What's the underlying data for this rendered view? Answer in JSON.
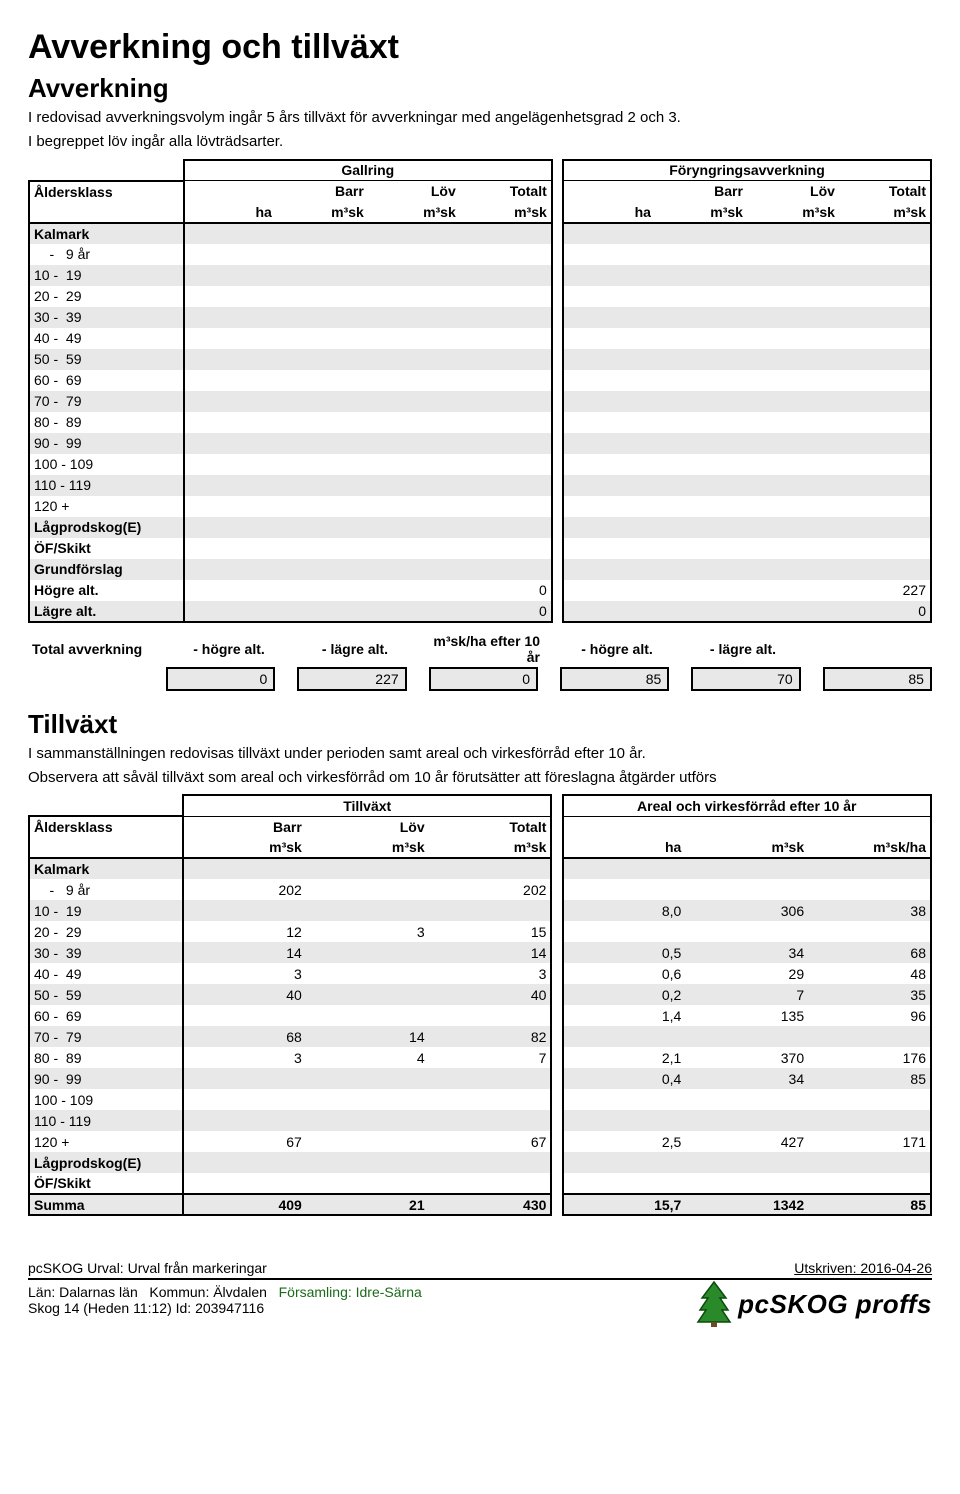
{
  "page": {
    "title": "Avverkning och tillväxt",
    "section1_title": "Avverkning",
    "section1_p1": "I redovisad avverkningsvolym ingår 5 års tillväxt för avverkningar med angelägenhetsgrad 2 och 3.",
    "section1_p2": "I begreppet löv ingår alla lövträdsarter.",
    "section2_title": "Tillväxt",
    "section2_p1": "I sammanställningen redovisas tillväxt under perioden samt areal och virkesförråd efter 10 år.",
    "section2_p2": "Observera att såväl tillväxt som areal och virkesförråd om 10 år förutsätter att föreslagna åtgärder utförs"
  },
  "table1": {
    "group1": "Gallring",
    "group2": "Föryngringsavverkning",
    "col_alders": "Åldersklass",
    "col_ha": "ha",
    "col_barr": "Barr",
    "col_lov": "Löv",
    "col_totalt": "Totalt",
    "col_m3sk": "m³sk",
    "rows_labels": [
      "Kalmark",
      "    -   9 år",
      "10 -  19",
      "20 -  29",
      "30 -  39",
      "40 -  49",
      "50 -  59",
      "60 -  69",
      "70 -  79",
      "80 -  89",
      "90 -  99",
      "100 - 109",
      "110 - 119",
      "120 +",
      "Lågprodskog(E)",
      "ÖF/Skikt",
      "Grundförslag",
      "Högre alt.",
      "Lägre alt."
    ],
    "hogre_gallring": "0",
    "hogre_foryngring": "227",
    "lagre_gallring": "0",
    "lagre_foryngring": "0",
    "summary_label": "Total avverkning",
    "summary_h1": "- högre alt.",
    "summary_h2": "- lägre alt.",
    "summary_h3": "m³sk/ha efter 10 år",
    "summary_h4": "- högre alt.",
    "summary_h5": "- lägre alt.",
    "summary_v1": "0",
    "summary_v2": "227",
    "summary_v3": "0",
    "summary_v4": "85",
    "summary_v5": "70",
    "summary_v6": "85"
  },
  "table2": {
    "group1": "Tillväxt",
    "group2": "Areal och virkesförråd efter 10 år",
    "col_alders": "Åldersklass",
    "col_barr": "Barr",
    "col_lov": "Löv",
    "col_totalt": "Totalt",
    "col_m3sk": "m³sk",
    "col_ha": "ha",
    "col_m3skha": "m³sk/ha",
    "rows": [
      {
        "label": "Kalmark",
        "barr": "",
        "lov": "",
        "tot": "",
        "ha": "",
        "m3": "",
        "m3ha": ""
      },
      {
        "label": "    -   9 år",
        "barr": "202",
        "lov": "",
        "tot": "202",
        "ha": "",
        "m3": "",
        "m3ha": ""
      },
      {
        "label": "10 -  19",
        "barr": "",
        "lov": "",
        "tot": "",
        "ha": "8,0",
        "m3": "306",
        "m3ha": "38"
      },
      {
        "label": "20 -  29",
        "barr": "12",
        "lov": "3",
        "tot": "15",
        "ha": "",
        "m3": "",
        "m3ha": ""
      },
      {
        "label": "30 -  39",
        "barr": "14",
        "lov": "",
        "tot": "14",
        "ha": "0,5",
        "m3": "34",
        "m3ha": "68"
      },
      {
        "label": "40 -  49",
        "barr": "3",
        "lov": "",
        "tot": "3",
        "ha": "0,6",
        "m3": "29",
        "m3ha": "48"
      },
      {
        "label": "50 -  59",
        "barr": "40",
        "lov": "",
        "tot": "40",
        "ha": "0,2",
        "m3": "7",
        "m3ha": "35"
      },
      {
        "label": "60 -  69",
        "barr": "",
        "lov": "",
        "tot": "",
        "ha": "1,4",
        "m3": "135",
        "m3ha": "96"
      },
      {
        "label": "70 -  79",
        "barr": "68",
        "lov": "14",
        "tot": "82",
        "ha": "",
        "m3": "",
        "m3ha": ""
      },
      {
        "label": "80 -  89",
        "barr": "3",
        "lov": "4",
        "tot": "7",
        "ha": "2,1",
        "m3": "370",
        "m3ha": "176"
      },
      {
        "label": "90 -  99",
        "barr": "",
        "lov": "",
        "tot": "",
        "ha": "0,4",
        "m3": "34",
        "m3ha": "85"
      },
      {
        "label": "100 - 109",
        "barr": "",
        "lov": "",
        "tot": "",
        "ha": "",
        "m3": "",
        "m3ha": ""
      },
      {
        "label": "110 - 119",
        "barr": "",
        "lov": "",
        "tot": "",
        "ha": "",
        "m3": "",
        "m3ha": ""
      },
      {
        "label": "120 +",
        "barr": "67",
        "lov": "",
        "tot": "67",
        "ha": "2,5",
        "m3": "427",
        "m3ha": "171"
      },
      {
        "label": "Lågprodskog(E)",
        "barr": "",
        "lov": "",
        "tot": "",
        "ha": "",
        "m3": "",
        "m3ha": ""
      },
      {
        "label": "ÖF/Skikt",
        "barr": "",
        "lov": "",
        "tot": "",
        "ha": "",
        "m3": "",
        "m3ha": ""
      }
    ],
    "summa_label": "Summa",
    "summa": {
      "barr": "409",
      "lov": "21",
      "tot": "430",
      "ha": "15,7",
      "m3": "1342",
      "m3ha": "85"
    }
  },
  "footer": {
    "left": "pcSKOG Urval: Urval från markeringar",
    "right": "Utskriven: 2016-04-26",
    "line2_a": "Län: Dalarnas län",
    "line2_b": "Kommun: Älvdalen",
    "line2_c": "Församling: Idre-Särna",
    "line3": "Skog 14 (Heden 11:12) Id: 203947116",
    "logo_text": "pcSKOG proffs"
  },
  "style": {
    "band_color": "#e8e8e8",
    "text_color": "#000000",
    "accent_green": "#2a7a2a"
  }
}
